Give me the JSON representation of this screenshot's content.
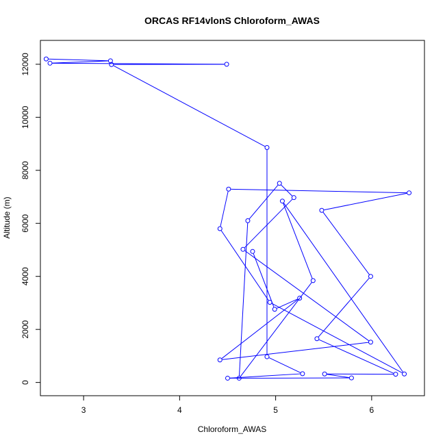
{
  "chart_data": {
    "type": "line",
    "title": "ORCAS RF14vlonS Chloroform_AWAS",
    "xlabel": "Chloroform_AWAS",
    "ylabel": "Altitude (m)",
    "xlim": [
      2.55,
      6.55
    ],
    "ylim": [
      -500,
      12900
    ],
    "xticks": [
      3,
      4,
      5,
      6
    ],
    "yticks": [
      0,
      2000,
      4000,
      6000,
      8000,
      10000,
      12000
    ],
    "grid": false,
    "series": [
      {
        "color": "#0000ff",
        "marker": "open-circle",
        "points": [
          {
            "x": 2.61,
            "y": 12200
          },
          {
            "x": 3.28,
            "y": 12130
          },
          {
            "x": 2.65,
            "y": 12040
          },
          {
            "x": 4.49,
            "y": 12000
          },
          {
            "x": 3.29,
            "y": 11990
          },
          {
            "x": 4.91,
            "y": 8860
          },
          {
            "x": 4.91,
            "y": 970
          },
          {
            "x": 5.28,
            "y": 330
          },
          {
            "x": 4.5,
            "y": 160
          },
          {
            "x": 5.79,
            "y": 170
          },
          {
            "x": 5.51,
            "y": 320
          },
          {
            "x": 6.25,
            "y": 310
          },
          {
            "x": 5.43,
            "y": 1650
          },
          {
            "x": 5.99,
            "y": 4000
          },
          {
            "x": 5.48,
            "y": 6490
          },
          {
            "x": 6.39,
            "y": 7150
          },
          {
            "x": 4.51,
            "y": 7290
          },
          {
            "x": 4.42,
            "y": 5800
          },
          {
            "x": 4.94,
            "y": 3020
          },
          {
            "x": 6.34,
            "y": 320
          },
          {
            "x": 5.07,
            "y": 6840
          },
          {
            "x": 5.39,
            "y": 3840
          },
          {
            "x": 4.62,
            "y": 160
          },
          {
            "x": 4.71,
            "y": 6100
          },
          {
            "x": 5.04,
            "y": 7510
          },
          {
            "x": 5.19,
            "y": 6970
          },
          {
            "x": 4.66,
            "y": 5020
          },
          {
            "x": 5.99,
            "y": 1520
          },
          {
            "x": 4.42,
            "y": 850
          },
          {
            "x": 5.25,
            "y": 3180
          },
          {
            "x": 4.99,
            "y": 2760
          },
          {
            "x": 4.76,
            "y": 4940
          }
        ]
      }
    ]
  }
}
